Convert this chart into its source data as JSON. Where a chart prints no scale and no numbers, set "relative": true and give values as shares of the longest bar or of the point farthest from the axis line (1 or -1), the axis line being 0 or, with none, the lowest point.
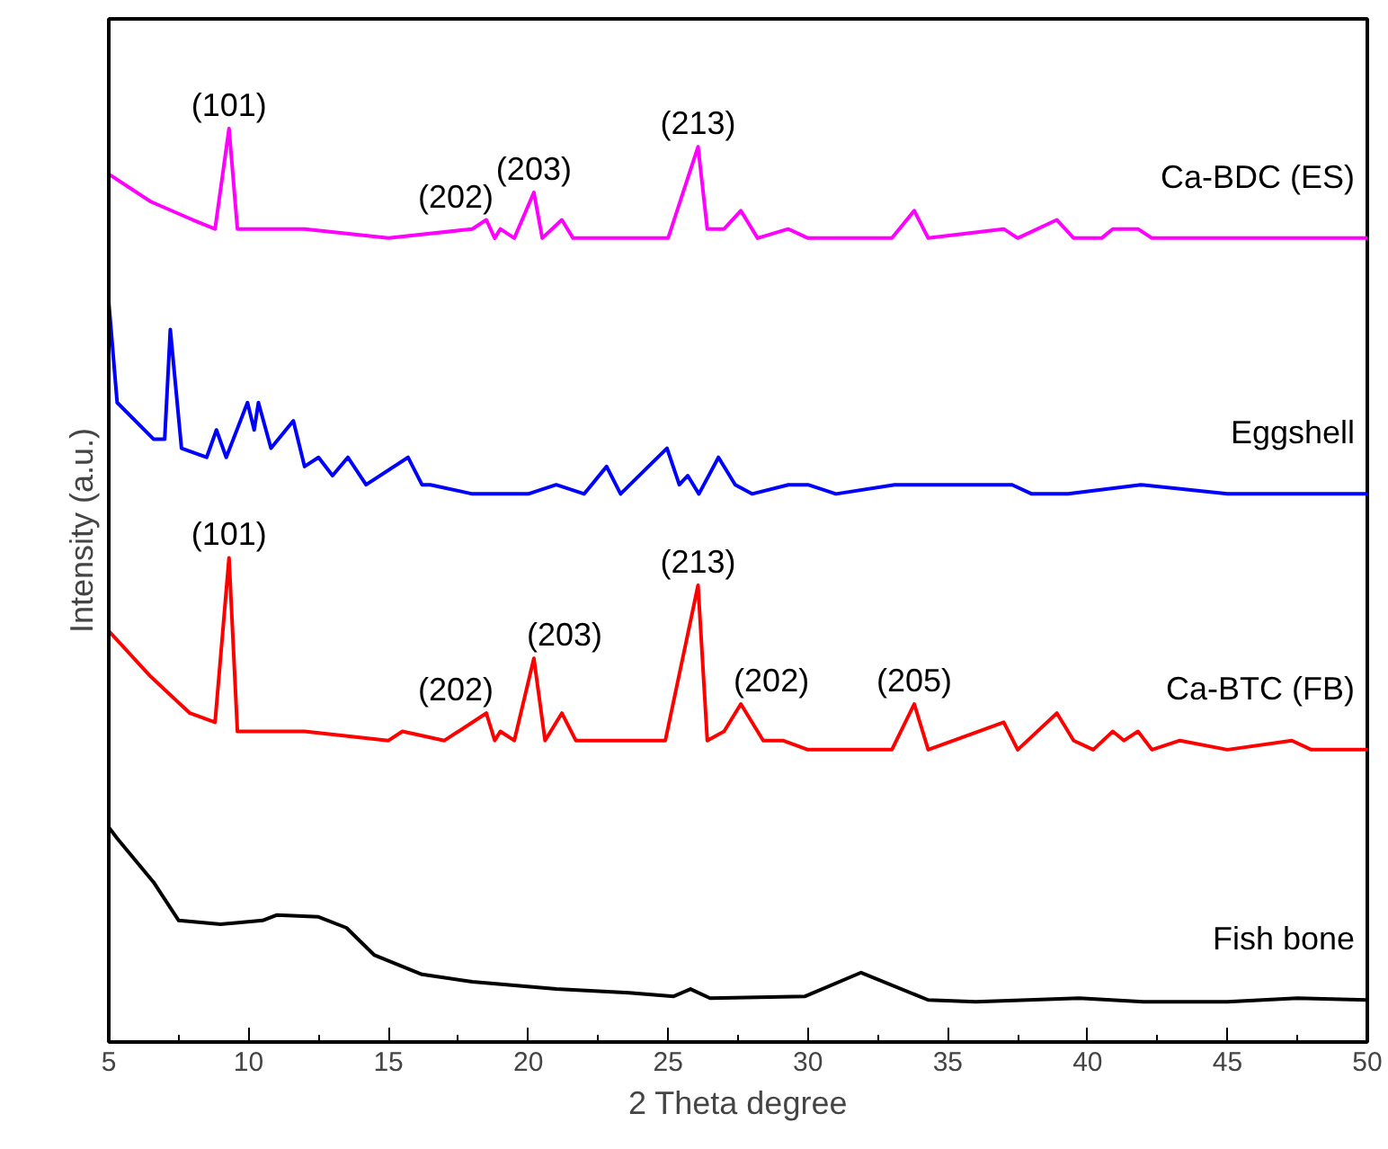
{
  "chart_data": {
    "type": "line",
    "relative": true,
    "xlabel": "2 Theta degree",
    "ylabel": "Intensity (a.u.)",
    "xlim": [
      5,
      50
    ],
    "xticks": [
      5,
      10,
      15,
      20,
      25,
      30,
      35,
      40,
      45,
      50
    ],
    "tick_labels": "x",
    "grid": false,
    "legend": false,
    "line_style": "solid",
    "series": [
      {
        "name": "Ca-BDC (ES)",
        "color": "#ff00ff",
        "x": [
          5,
          6.5,
          8,
          8.8,
          9.3,
          9.6,
          12,
          15,
          18,
          18.5,
          18.8,
          19.0,
          19.5,
          20.2,
          20.5,
          21.2,
          21.6,
          22.5,
          25,
          26.07,
          26.4,
          27.0,
          27.6,
          28.2,
          29.3,
          30,
          33,
          33.8,
          34.3,
          37.0,
          37.5,
          38.9,
          39.5,
          40.5,
          40.9,
          41.3,
          41.8,
          42.3,
          43.3,
          45,
          47.2,
          48,
          50
        ],
        "values": [
          0.95,
          0.92,
          0.9,
          0.89,
          1.0,
          0.89,
          0.89,
          0.88,
          0.89,
          0.9,
          0.88,
          0.89,
          0.88,
          0.93,
          0.88,
          0.9,
          0.88,
          0.88,
          0.88,
          0.98,
          0.89,
          0.89,
          0.91,
          0.88,
          0.89,
          0.88,
          0.88,
          0.91,
          0.88,
          0.89,
          0.88,
          0.9,
          0.88,
          0.88,
          0.89,
          0.89,
          0.89,
          0.88,
          0.88,
          0.88,
          0.88,
          0.88,
          0.88
        ]
      },
      {
        "name": "Eggshell",
        "color": "#0000ff",
        "x": [
          5,
          5.3,
          6.6,
          7.0,
          7.2,
          7.6,
          8.5,
          8.85,
          9.2,
          9.96,
          10.2,
          10.35,
          10.8,
          11.6,
          12.0,
          12.5,
          13.0,
          13.55,
          14.2,
          15.7,
          16.2,
          16.5,
          18,
          20,
          21,
          22,
          22.8,
          23.3,
          24.96,
          25.4,
          25.7,
          26.1,
          26.8,
          27.4,
          28,
          29.3,
          30.0,
          31,
          33.1,
          34.7,
          37.3,
          38,
          39.3,
          41.9,
          45,
          47.5,
          50
        ],
        "values": [
          0.81,
          0.7,
          0.66,
          0.66,
          0.78,
          0.65,
          0.64,
          0.67,
          0.64,
          0.7,
          0.67,
          0.7,
          0.65,
          0.68,
          0.63,
          0.64,
          0.62,
          0.64,
          0.61,
          0.64,
          0.61,
          0.61,
          0.6,
          0.6,
          0.61,
          0.6,
          0.63,
          0.6,
          0.65,
          0.61,
          0.62,
          0.6,
          0.64,
          0.61,
          0.6,
          0.61,
          0.61,
          0.6,
          0.61,
          0.61,
          0.61,
          0.6,
          0.6,
          0.61,
          0.6,
          0.6,
          0.6
        ]
      },
      {
        "name": "Ca-BTC (FB)",
        "color": "#ff0000",
        "x": [
          5,
          6.5,
          7.9,
          8.8,
          9.3,
          9.6,
          12,
          15,
          15.5,
          17,
          18.5,
          18.8,
          19.0,
          19.5,
          20.2,
          20.6,
          21.2,
          21.7,
          22.5,
          23,
          23.6,
          24.2,
          24.9,
          26.07,
          26.4,
          27.0,
          27.6,
          28.4,
          29.1,
          30,
          33,
          33.8,
          34.3,
          37.0,
          37.5,
          38.9,
          39.5,
          40.2,
          40.9,
          41.3,
          41.8,
          42.3,
          43.3,
          45,
          47.3,
          48,
          50
        ],
        "values": [
          0.45,
          0.4,
          0.36,
          0.35,
          0.53,
          0.34,
          0.34,
          0.33,
          0.34,
          0.33,
          0.36,
          0.33,
          0.34,
          0.33,
          0.42,
          0.33,
          0.36,
          0.33,
          0.33,
          0.33,
          0.33,
          0.33,
          0.33,
          0.5,
          0.33,
          0.34,
          0.37,
          0.33,
          0.33,
          0.32,
          0.32,
          0.37,
          0.32,
          0.35,
          0.32,
          0.36,
          0.33,
          0.32,
          0.34,
          0.33,
          0.34,
          0.32,
          0.33,
          0.32,
          0.33,
          0.32,
          0.32
        ]
      },
      {
        "name": "Fish bone",
        "color": "#000000",
        "x": [
          5,
          5.3,
          6.6,
          7.5,
          9,
          10.5,
          11.0,
          12.5,
          13.5,
          14.5,
          16.2,
          18,
          21,
          23.6,
          25.2,
          25.8,
          26.5,
          29.9,
          31.9,
          34.3,
          36,
          39.7,
          42,
          45,
          47.5,
          50
        ],
        "values": [
          0.235,
          0.223,
          0.175,
          0.133,
          0.129,
          0.133,
          0.139,
          0.137,
          0.125,
          0.095,
          0.074,
          0.066,
          0.058,
          0.054,
          0.05,
          0.058,
          0.048,
          0.05,
          0.076,
          0.046,
          0.044,
          0.048,
          0.044,
          0.044,
          0.048,
          0.046
        ]
      }
    ],
    "annotations": [
      {
        "text": "(101)",
        "x": 9.3,
        "y": 1.0
      },
      {
        "text": "(202)",
        "x": 18.5,
        "y": 0.9
      },
      {
        "text": "(203)",
        "x": 20.2,
        "y": 0.93
      },
      {
        "text": "(213)",
        "x": 26.07,
        "y": 0.98
      },
      {
        "text": "(101)",
        "x": 9.3,
        "y": 0.53
      },
      {
        "text": "(202)",
        "x": 18.5,
        "y": 0.36
      },
      {
        "text": "(203)",
        "x": 20.2,
        "y": 0.42
      },
      {
        "text": "(213)",
        "x": 26.07,
        "y": 0.5
      },
      {
        "text": "(202)",
        "x": 27.6,
        "y": 0.37
      },
      {
        "text": "(205)",
        "x": 33.8,
        "y": 0.37
      }
    ]
  }
}
